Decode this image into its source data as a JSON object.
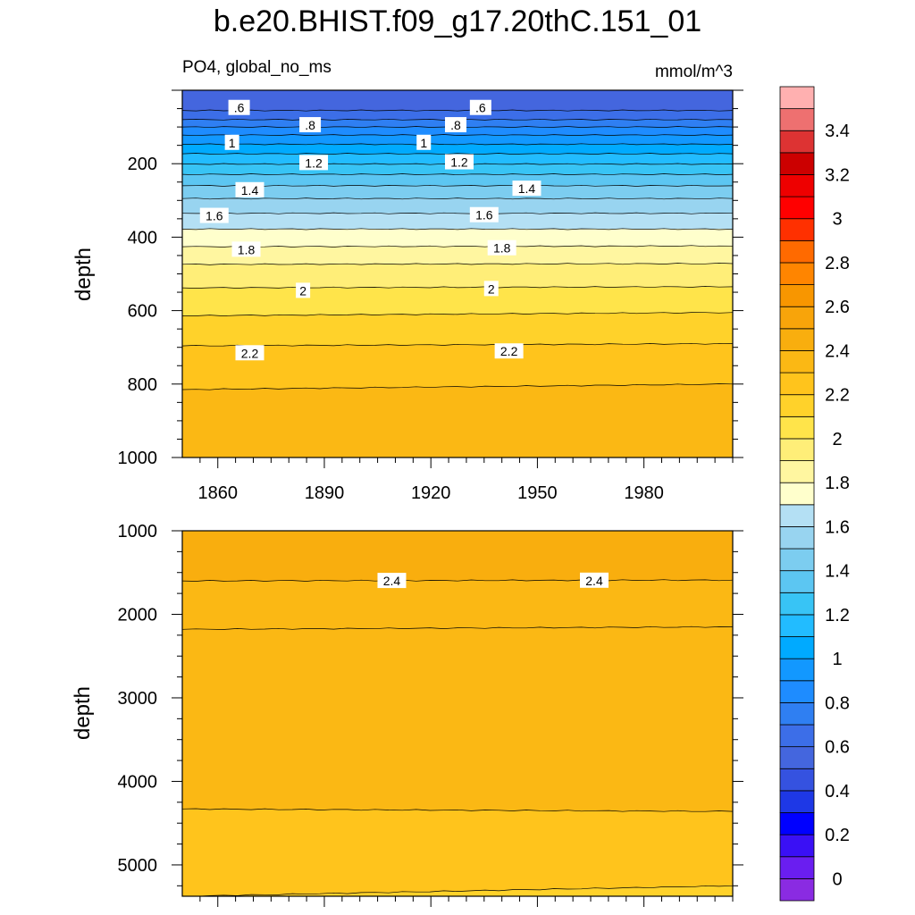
{
  "chart_data": [
    {
      "type": "contour",
      "panel": "upper",
      "title": "b.e20.BHIST.f09_g17.20thC.151_01",
      "left_subtitle": "PO4, global_no_ms",
      "right_subtitle": "mmol/m^3",
      "xlabel": "",
      "ylabel": "depth",
      "xlim": [
        1850,
        2005
      ],
      "ylim": [
        1000,
        0
      ],
      "y_reversed": true,
      "x_ticks": [
        1860,
        1890,
        1920,
        1950,
        1980
      ],
      "y_ticks": [
        200,
        400,
        600,
        800,
        1000
      ],
      "contour_lines": [
        {
          "level": 0.6,
          "depth": [
            55,
            55
          ]
        },
        {
          "level": 0.7,
          "depth": [
            80,
            80
          ]
        },
        {
          "level": 0.8,
          "depth": [
            100,
            100
          ]
        },
        {
          "level": 0.9,
          "depth": [
            122,
            122
          ]
        },
        {
          "level": 1.0,
          "depth": [
            147,
            147
          ]
        },
        {
          "level": 1.1,
          "depth": [
            173,
            173
          ]
        },
        {
          "level": 1.2,
          "depth": [
            201,
            201
          ]
        },
        {
          "level": 1.3,
          "depth": [
            229,
            229
          ]
        },
        {
          "level": 1.4,
          "depth": [
            260,
            260
          ]
        },
        {
          "level": 1.5,
          "depth": [
            295,
            295
          ]
        },
        {
          "level": 1.6,
          "depth": [
            335,
            335
          ]
        },
        {
          "level": 1.7,
          "depth": [
            378,
            378
          ]
        },
        {
          "level": 1.8,
          "depth": [
            426,
            424
          ]
        },
        {
          "level": 1.9,
          "depth": [
            474,
            472
          ]
        },
        {
          "level": 2.0,
          "depth": [
            538,
            535
          ]
        },
        {
          "level": 2.1,
          "depth": [
            614,
            605
          ]
        },
        {
          "level": 2.2,
          "depth": [
            696,
            690
          ]
        },
        {
          "level": 2.3,
          "depth": [
            815,
            800
          ]
        }
      ],
      "line_labels": [
        {
          "text": ".6",
          "x": 1866,
          "y": 48
        },
        {
          "text": ".6",
          "x": 1934,
          "y": 48
        },
        {
          "text": ".8",
          "x": 1886,
          "y": 95
        },
        {
          "text": ".8",
          "x": 1927,
          "y": 95
        },
        {
          "text": "1",
          "x": 1864,
          "y": 143
        },
        {
          "text": "1",
          "x": 1918,
          "y": 143
        },
        {
          "text": "1.2",
          "x": 1887,
          "y": 198
        },
        {
          "text": "1.2",
          "x": 1928,
          "y": 196
        },
        {
          "text": "1.4",
          "x": 1869,
          "y": 272
        },
        {
          "text": "1.4",
          "x": 1947,
          "y": 268
        },
        {
          "text": "1.6",
          "x": 1859,
          "y": 342
        },
        {
          "text": "1.6",
          "x": 1935,
          "y": 340
        },
        {
          "text": "1.8",
          "x": 1868,
          "y": 434
        },
        {
          "text": "1.8",
          "x": 1940,
          "y": 430
        },
        {
          "text": "2",
          "x": 1884,
          "y": 546
        },
        {
          "text": "2",
          "x": 1937,
          "y": 541
        },
        {
          "text": "2.2",
          "x": 1869,
          "y": 716
        },
        {
          "text": "2.2",
          "x": 1942,
          "y": 711
        }
      ]
    },
    {
      "type": "contour",
      "panel": "lower",
      "xlabel": "",
      "ylabel": "depth",
      "xlim": [
        1850,
        2005
      ],
      "ylim": [
        5375,
        1000
      ],
      "y_reversed": true,
      "y_ticks": [
        1000,
        2000,
        3000,
        4000,
        5000
      ],
      "contour_lines": [
        {
          "level": 2.4,
          "depth": [
            1600,
            1590
          ]
        },
        {
          "level": 2.3,
          "depth": [
            2180,
            2150
          ]
        },
        {
          "level": 2.3,
          "depth": [
            4330,
            4360
          ]
        },
        {
          "level": 2.2,
          "depth": [
            5375,
            5250
          ]
        }
      ],
      "line_labels": [
        {
          "text": "2.4",
          "x": 1909,
          "y": 1600
        },
        {
          "text": "2.4",
          "x": 1966,
          "y": 1597
        }
      ]
    }
  ],
  "colorbar": {
    "levels": [
      0,
      0.1,
      0.2,
      0.3,
      0.4,
      0.5,
      0.6,
      0.7,
      0.8,
      0.9,
      1,
      1.1,
      1.2,
      1.3,
      1.4,
      1.5,
      1.6,
      1.7,
      1.8,
      1.9,
      2,
      2.1,
      2.2,
      2.3,
      2.4,
      2.5,
      2.6,
      2.7,
      2.8,
      2.9,
      3,
      3.1,
      3.2,
      3.3,
      3.4,
      3.5
    ],
    "labels": [
      "0",
      "0.2",
      "0.4",
      "0.6",
      "0.8",
      "1",
      "1.2",
      "1.4",
      "1.6",
      "1.8",
      "2",
      "2.2",
      "2.4",
      "2.6",
      "2.8",
      "3",
      "3.2",
      "3.4"
    ],
    "colors": [
      "#8a2be2",
      "#6a1ef0",
      "#3a10f5",
      "#0000ff",
      "#1e38e6",
      "#3552e0",
      "#4466de",
      "#3c6ee8",
      "#2f7ff2",
      "#1e8cff",
      "#1298ff",
      "#00aaff",
      "#22bcff",
      "#38c4f5",
      "#5cc6f2",
      "#7ccdf0",
      "#98d4f0",
      "#b4e0f4",
      "#ffffcc",
      "#fff6a0",
      "#ffee78",
      "#ffe44a",
      "#ffd22a",
      "#ffc41c",
      "#fbb814",
      "#f9ae0e",
      "#f8a40a",
      "#f89600",
      "#ff8500",
      "#ff6a00",
      "#ff3000",
      "#ff0000",
      "#ee0000",
      "#cc0000",
      "#dd3333",
      "#ee7070",
      "#ffb0b0"
    ]
  }
}
